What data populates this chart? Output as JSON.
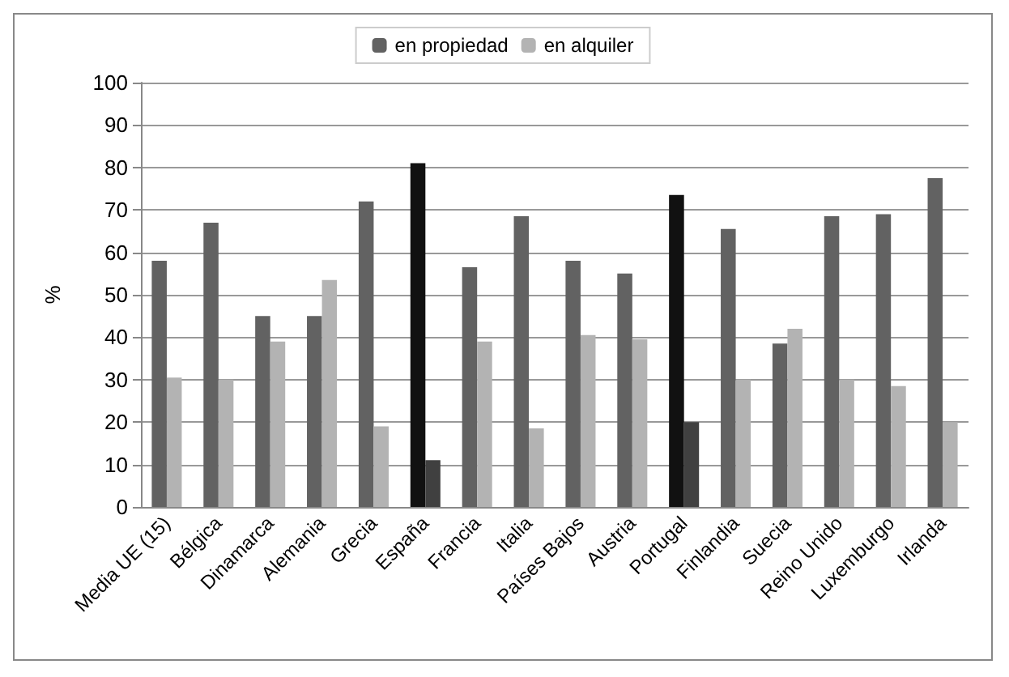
{
  "chart_data": {
    "type": "bar",
    "ylabel": "%",
    "categories": [
      "Media UE (15)",
      "Bélgica",
      "Dinamarca",
      "Alemania",
      "Grecia",
      "España",
      "Francia",
      "Italia",
      "Países Bajos",
      "Austria",
      "Portugal",
      "Finlandia",
      "Suecia",
      "Reino Unido",
      "Luxemburgo",
      "Irlanda"
    ],
    "series": [
      {
        "name": "en propiedad",
        "color": "#626262",
        "colors": [
          "#626262",
          "#626262",
          "#626262",
          "#626262",
          "#626262",
          "#111111",
          "#626262",
          "#626262",
          "#626262",
          "#626262",
          "#111111",
          "#626262",
          "#626262",
          "#626262",
          "#626262",
          "#626262"
        ],
        "values": [
          58,
          67,
          45,
          45,
          72,
          81,
          56.5,
          68.5,
          58,
          55,
          73.5,
          65.5,
          38.5,
          68.5,
          69,
          77.5
        ]
      },
      {
        "name": "en alquiler",
        "color": "#b3b3b3",
        "colors": [
          "#b3b3b3",
          "#b3b3b3",
          "#b3b3b3",
          "#b3b3b3",
          "#b3b3b3",
          "#404040",
          "#b3b3b3",
          "#b3b3b3",
          "#b3b3b3",
          "#b3b3b3",
          "#404040",
          "#b3b3b3",
          "#b3b3b3",
          "#b3b3b3",
          "#b3b3b3",
          "#b3b3b3"
        ],
        "values": [
          30.5,
          30,
          39,
          53.5,
          19,
          11,
          39,
          18.5,
          40.5,
          39.5,
          20,
          30,
          42,
          30,
          28.5,
          20
        ]
      }
    ],
    "ylim": [
      0,
      100
    ],
    "yticks": [
      0,
      10,
      20,
      30,
      40,
      50,
      60,
      70,
      80,
      90,
      100
    ],
    "grid": "y",
    "legend": "top"
  }
}
